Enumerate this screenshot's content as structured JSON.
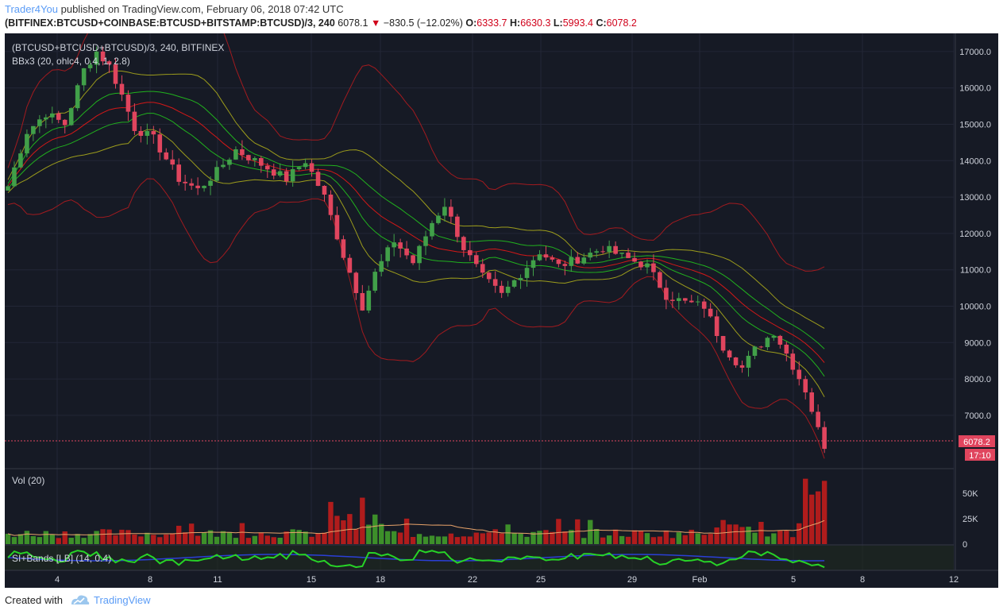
{
  "header": {
    "author": "Trader4You",
    "published_text": "published on TradingView.com, February 06, 2018 07:42 UTC",
    "symbol": "(BITFINEX:BTCUSD+COINBASE:BTCUSD+BITSTAMP:BTCUSD)/3, 240",
    "last_price": "6078.1",
    "change": "−830.5 (−12.02%)",
    "o_label": "O:",
    "o_value": "6333.7",
    "h_label": "H:",
    "h_value": "6630.3",
    "l_label": "L:",
    "l_value": "5993.4",
    "c_label": "C:",
    "c_value": "6078.2"
  },
  "legend": {
    "symbol_line": "(BTCUSD+BTCUSD+BTCUSD)/3, 240, BITFINEX",
    "indicator_line": "BBx3 (20, ohlc4, 0.4, 1, 2.8)",
    "volume_title": "Vol (20)",
    "si_title": "SI+Bands [LB] (14, 0.4)"
  },
  "price_tags": {
    "last": "6078.2",
    "countdown": "17:10"
  },
  "footer": {
    "created_with": "Created with",
    "brand": "TradingView"
  },
  "colors": {
    "background": "#161a25",
    "up": "#41a049",
    "down": "#e0455e",
    "bb_outer": "#a21a1f",
    "bb_mid": "#9c9c1c",
    "bb_inner": "#21b11e",
    "bb_basis": "#d31818",
    "grid": "#222636",
    "vol_up": "#3d8f2a",
    "vol_down": "#b01c1c",
    "vol_ma": "#e8a36a",
    "si_line": "#27d327",
    "si_band": "#2b3fd6",
    "brand": "#5b9cf6"
  },
  "chart_data": {
    "type": "candlestick",
    "timeframe": "240",
    "x_tick_labels": [
      "4",
      "8",
      "11",
      "15",
      "18",
      "22",
      "25",
      "29",
      "Feb",
      "5",
      "8",
      "12"
    ],
    "price_axis": {
      "ticks": [
        7000,
        8000,
        9000,
        10000,
        11000,
        12000,
        13000,
        14000,
        15000,
        16000,
        17000
      ],
      "tick_labels": [
        "7000.0",
        "8000.0",
        "9000.0",
        "10000.0",
        "11000.0",
        "12000.0",
        "13000.0",
        "14000.0",
        "15000.0",
        "16000.0",
        "17000.0"
      ],
      "range": [
        5600,
        17500
      ]
    },
    "volume_axis": {
      "ticks": [
        0,
        25000,
        50000
      ],
      "tick_labels": [
        "0",
        "25K",
        "50K"
      ],
      "range": [
        0,
        68000
      ]
    },
    "close_path": [
      {
        "x": 0,
        "c": 13300
      },
      {
        "x": 3,
        "c": 14800
      },
      {
        "x": 6,
        "c": 15300
      },
      {
        "x": 9,
        "c": 15000
      },
      {
        "x": 12,
        "c": 16500
      },
      {
        "x": 14,
        "c": 17000
      },
      {
        "x": 16,
        "c": 16600
      },
      {
        "x": 18,
        "c": 15800
      },
      {
        "x": 20,
        "c": 14900
      },
      {
        "x": 23,
        "c": 14600
      },
      {
        "x": 27,
        "c": 13500
      },
      {
        "x": 30,
        "c": 13200
      },
      {
        "x": 33,
        "c": 13700
      },
      {
        "x": 36,
        "c": 14300
      },
      {
        "x": 40,
        "c": 13900
      },
      {
        "x": 44,
        "c": 13500
      },
      {
        "x": 47,
        "c": 14000
      },
      {
        "x": 50,
        "c": 13000
      },
      {
        "x": 53,
        "c": 11400
      },
      {
        "x": 56,
        "c": 10000
      },
      {
        "x": 58,
        "c": 10900
      },
      {
        "x": 61,
        "c": 11800
      },
      {
        "x": 64,
        "c": 11200
      },
      {
        "x": 67,
        "c": 12300
      },
      {
        "x": 69,
        "c": 12800
      },
      {
        "x": 72,
        "c": 11600
      },
      {
        "x": 75,
        "c": 10800
      },
      {
        "x": 78,
        "c": 10300
      },
      {
        "x": 81,
        "c": 10900
      },
      {
        "x": 84,
        "c": 11500
      },
      {
        "x": 87,
        "c": 11100
      },
      {
        "x": 90,
        "c": 11300
      },
      {
        "x": 94,
        "c": 11600
      },
      {
        "x": 98,
        "c": 11300
      },
      {
        "x": 101,
        "c": 11100
      },
      {
        "x": 104,
        "c": 10300
      },
      {
        "x": 107,
        "c": 10100
      },
      {
        "x": 110,
        "c": 10000
      },
      {
        "x": 113,
        "c": 8900
      },
      {
        "x": 116,
        "c": 8300
      },
      {
        "x": 118,
        "c": 8800
      },
      {
        "x": 121,
        "c": 9300
      },
      {
        "x": 123,
        "c": 8700
      },
      {
        "x": 126,
        "c": 7700
      },
      {
        "x": 128,
        "c": 6600
      },
      {
        "x": 129,
        "c": 6078
      }
    ],
    "candle_count": 130,
    "last_close": 6078.2
  }
}
